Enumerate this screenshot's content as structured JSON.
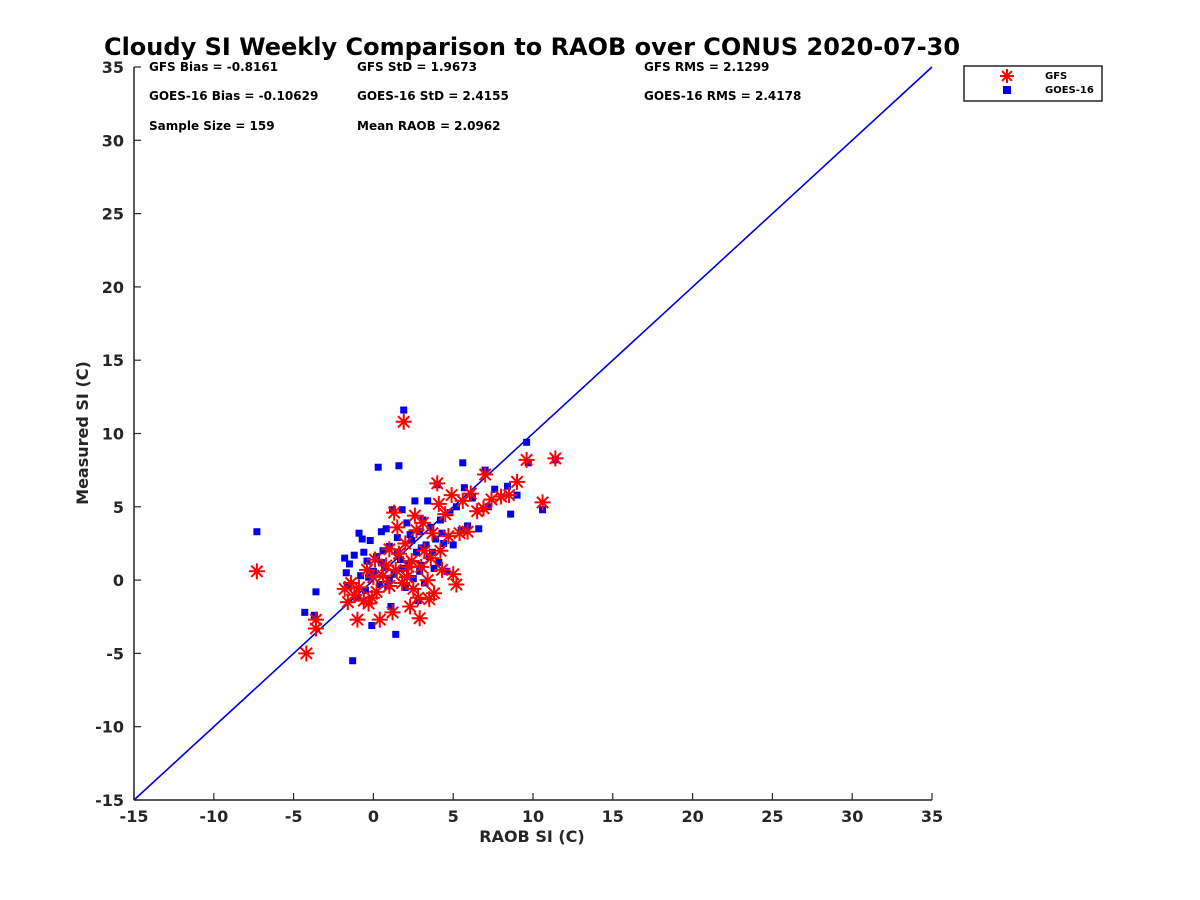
{
  "chart_data": {
    "type": "scatter",
    "title": "Cloudy SI Weekly Comparison to RAOB over CONUS 2020-07-30",
    "xlabel": "RAOB SI (C)",
    "ylabel": "Measured SI (C)",
    "xlim": [
      -15,
      35
    ],
    "ylim": [
      -15,
      35
    ],
    "xticks": [
      -15,
      -10,
      -5,
      0,
      5,
      10,
      15,
      20,
      25,
      30,
      35
    ],
    "yticks": [
      -15,
      -10,
      -5,
      0,
      5,
      10,
      15,
      20,
      25,
      30,
      35
    ],
    "grid": false,
    "legend_placement": "outside-top-right",
    "reference_line": {
      "x": [
        -15,
        35
      ],
      "y": [
        -15,
        35
      ],
      "color": "#0000dd"
    },
    "stats": [
      {
        "label": "GFS Bias = -0.8161"
      },
      {
        "label": "GFS StD = 1.9673"
      },
      {
        "label": "GFS RMS = 2.1299"
      },
      {
        "label": "GOES-16 Bias = -0.10629"
      },
      {
        "label": "GOES-16 StD = 2.4155"
      },
      {
        "label": "GOES-16 RMS = 2.4178"
      },
      {
        "label": "Sample Size = 159"
      },
      {
        "label": "Mean RAOB = 2.0962"
      }
    ],
    "series": [
      {
        "name": "GFS",
        "marker": "asterisk",
        "color": "#ff0000",
        "points": [
          [
            -7.3,
            0.6
          ],
          [
            -4.2,
            -5.0
          ],
          [
            -3.6,
            -3.3
          ],
          [
            -3.6,
            -2.7
          ],
          [
            -1.8,
            -0.6
          ],
          [
            -1.6,
            -1.5
          ],
          [
            -1.4,
            -0.2
          ],
          [
            -1.2,
            -1.0
          ],
          [
            -1.0,
            -2.7
          ],
          [
            -0.9,
            -0.5
          ],
          [
            -0.6,
            -1.4
          ],
          [
            -0.3,
            -1.6
          ],
          [
            -0.1,
            -1.2
          ],
          [
            0.2,
            -0.8
          ],
          [
            0.4,
            -2.7
          ],
          [
            0.6,
            0.3
          ],
          [
            0.8,
            1.0
          ],
          [
            1.0,
            -0.4
          ],
          [
            1.2,
            -2.2
          ],
          [
            1.3,
            4.6
          ],
          [
            1.4,
            0.7
          ],
          [
            1.6,
            1.8
          ],
          [
            1.8,
            -0.2
          ],
          [
            1.9,
            10.8
          ],
          [
            2.0,
            2.5
          ],
          [
            2.1,
            0.2
          ],
          [
            2.3,
            -1.8
          ],
          [
            2.4,
            1.3
          ],
          [
            2.6,
            4.4
          ],
          [
            2.7,
            3.4
          ],
          [
            2.8,
            -1.2
          ],
          [
            2.9,
            -2.6
          ],
          [
            3.0,
            0.9
          ],
          [
            3.2,
            2.0
          ],
          [
            3.4,
            0.0
          ],
          [
            3.5,
            -1.3
          ],
          [
            3.7,
            3.2
          ],
          [
            3.8,
            -0.9
          ],
          [
            4.0,
            6.6
          ],
          [
            4.2,
            2.0
          ],
          [
            4.3,
            0.7
          ],
          [
            4.5,
            4.5
          ],
          [
            4.7,
            3.0
          ],
          [
            4.9,
            5.8
          ],
          [
            5.0,
            0.4
          ],
          [
            5.2,
            -0.3
          ],
          [
            5.4,
            3.2
          ],
          [
            5.6,
            5.4
          ],
          [
            5.9,
            3.3
          ],
          [
            6.1,
            5.9
          ],
          [
            6.5,
            4.7
          ],
          [
            6.9,
            4.9
          ],
          [
            7.0,
            7.2
          ],
          [
            7.4,
            5.5
          ],
          [
            8.0,
            5.7
          ],
          [
            8.5,
            5.8
          ],
          [
            9.0,
            6.7
          ],
          [
            9.6,
            8.2
          ],
          [
            10.6,
            5.3
          ],
          [
            11.4,
            8.3
          ],
          [
            -0.4,
            0.7
          ],
          [
            0.1,
            1.4
          ],
          [
            1.5,
            3.6
          ],
          [
            2.2,
            0.9
          ],
          [
            3.1,
            3.9
          ],
          [
            4.1,
            5.2
          ],
          [
            0.0,
            0.2
          ],
          [
            1.0,
            2.1
          ],
          [
            2.5,
            -0.6
          ],
          [
            3.6,
            1.5
          ]
        ]
      },
      {
        "name": "GOES-16",
        "marker": "square",
        "color": "#0000ee",
        "points": [
          [
            -7.3,
            3.3
          ],
          [
            -4.3,
            -2.2
          ],
          [
            -3.7,
            -2.4
          ],
          [
            -3.6,
            -0.8
          ],
          [
            -1.8,
            1.5
          ],
          [
            -1.7,
            0.5
          ],
          [
            -1.6,
            -0.4
          ],
          [
            -1.5,
            1.1
          ],
          [
            -1.3,
            -5.5
          ],
          [
            -1.2,
            1.7
          ],
          [
            -1.0,
            -1.2
          ],
          [
            -0.9,
            3.2
          ],
          [
            -0.8,
            0.3
          ],
          [
            -0.7,
            2.8
          ],
          [
            -0.6,
            1.9
          ],
          [
            -0.5,
            -0.7
          ],
          [
            -0.4,
            1.3
          ],
          [
            -0.2,
            2.7
          ],
          [
            -0.1,
            -3.1
          ],
          [
            0.0,
            0.6
          ],
          [
            0.2,
            1.6
          ],
          [
            0.3,
            7.7
          ],
          [
            0.4,
            -0.3
          ],
          [
            0.5,
            3.3
          ],
          [
            0.6,
            2.0
          ],
          [
            0.7,
            0.9
          ],
          [
            0.8,
            3.5
          ],
          [
            0.9,
            -0.4
          ],
          [
            1.0,
            2.3
          ],
          [
            1.1,
            -1.8
          ],
          [
            1.2,
            4.8
          ],
          [
            1.3,
            0.4
          ],
          [
            1.4,
            -3.7
          ],
          [
            1.5,
            2.9
          ],
          [
            1.6,
            7.8
          ],
          [
            1.7,
            1.4
          ],
          [
            1.8,
            4.8
          ],
          [
            1.9,
            11.6
          ],
          [
            2.0,
            -0.5
          ],
          [
            2.1,
            3.9
          ],
          [
            2.2,
            1.1
          ],
          [
            2.4,
            2.7
          ],
          [
            2.5,
            0.1
          ],
          [
            2.6,
            5.4
          ],
          [
            2.7,
            1.9
          ],
          [
            2.8,
            -1.4
          ],
          [
            2.9,
            3.3
          ],
          [
            3.0,
            1.0
          ],
          [
            3.1,
            4.1
          ],
          [
            3.2,
            -0.2
          ],
          [
            3.3,
            2.4
          ],
          [
            3.4,
            5.4
          ],
          [
            3.5,
            1.6
          ],
          [
            3.6,
            3.6
          ],
          [
            3.8,
            0.8
          ],
          [
            3.9,
            2.8
          ],
          [
            4.0,
            6.5
          ],
          [
            4.1,
            1.2
          ],
          [
            4.2,
            4.1
          ],
          [
            4.4,
            2.5
          ],
          [
            4.6,
            0.6
          ],
          [
            4.8,
            4.6
          ],
          [
            5.0,
            2.4
          ],
          [
            5.2,
            5.0
          ],
          [
            5.5,
            3.4
          ],
          [
            5.6,
            8.0
          ],
          [
            5.7,
            6.3
          ],
          [
            5.9,
            3.7
          ],
          [
            6.2,
            5.6
          ],
          [
            6.6,
            3.5
          ],
          [
            7.0,
            7.5
          ],
          [
            7.2,
            5.0
          ],
          [
            7.6,
            6.2
          ],
          [
            8.4,
            6.4
          ],
          [
            8.6,
            4.5
          ],
          [
            9.0,
            5.8
          ],
          [
            9.6,
            9.4
          ],
          [
            9.7,
            8.0
          ],
          [
            10.6,
            4.8
          ],
          [
            11.4,
            8.2
          ],
          [
            -0.3,
            0.2
          ],
          [
            0.5,
            1.2
          ],
          [
            1.0,
            0.0
          ],
          [
            1.5,
            1.9
          ],
          [
            2.3,
            3.1
          ],
          [
            3.0,
            2.2
          ],
          [
            3.7,
            1.9
          ],
          [
            4.3,
            3.2
          ],
          [
            1.8,
            0.8
          ],
          [
            2.9,
            0.6
          ]
        ]
      }
    ]
  }
}
